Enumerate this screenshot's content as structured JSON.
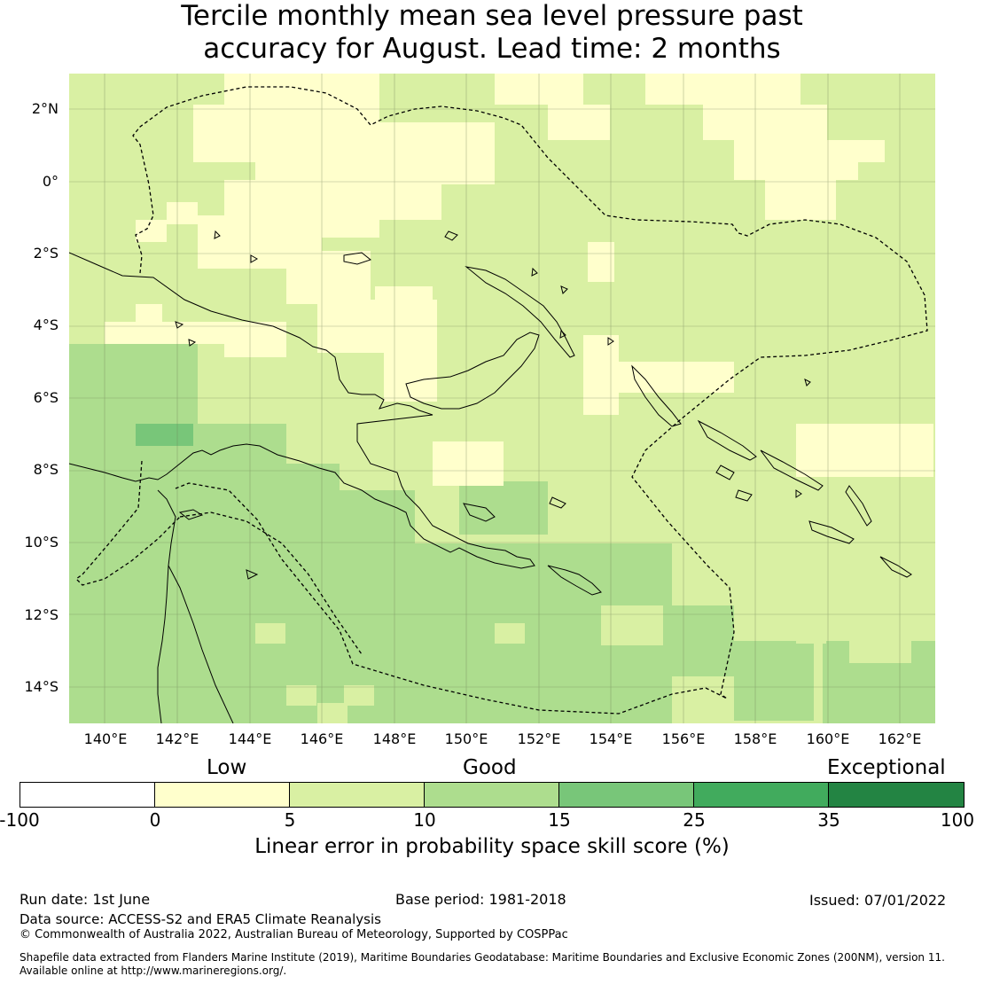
{
  "title_line1": "Tercile monthly mean sea level pressure past",
  "title_line2": "accuracy for August. Lead time: 2 months",
  "map": {
    "lat_labels": [
      "2°N",
      "0°",
      "2°S",
      "4°S",
      "6°S",
      "8°S",
      "10°S",
      "12°S",
      "14°S"
    ],
    "lon_labels": [
      "140°E",
      "142°E",
      "144°E",
      "146°E",
      "148°E",
      "150°E",
      "152°E",
      "154°E",
      "156°E",
      "158°E",
      "160°E",
      "162°E"
    ],
    "extent": {
      "lon_min": 139,
      "lon_max": 163,
      "lat_min": -15,
      "lat_max": 3
    }
  },
  "colorbar": {
    "categories": [
      "Low",
      "Good",
      "Exceptional"
    ],
    "ticks": [
      "-100",
      "0",
      "5",
      "10",
      "15",
      "25",
      "35",
      "100"
    ],
    "colors": [
      "#ffffff",
      "#ffffcc",
      "#d9f0a3",
      "#addd8e",
      "#78c679",
      "#41ab5d",
      "#238443"
    ],
    "label": "Linear error in probability space skill score (%)"
  },
  "footer": {
    "run_date": "Run date: 1st June",
    "base_period": "Base period: 1981-2018",
    "issued": "Issued: 07/01/2022",
    "data_source": "Data source: ACCESS-S2 and ERA5 Climate Reanalysis",
    "copyright": "© Commonwealth of Australia 2022, Australian Bureau of Meteorology, Supported by COSPPac",
    "shapefile_line1": "Shapefile data extracted from Flanders Marine Institute (2019), Maritime Boundaries Geodatabase: Maritime Boundaries and Exclusive Economic Zones (200NM), version 11.",
    "shapefile_line2": "Available online at http://www.marineregions.org/."
  }
}
